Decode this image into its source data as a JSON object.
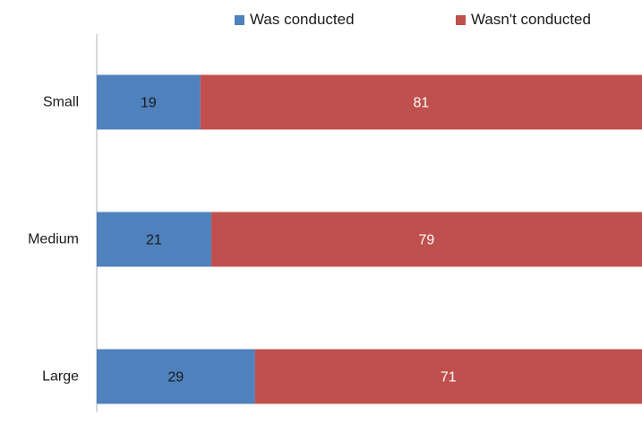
{
  "chart_data": {
    "type": "bar",
    "orientation": "horizontal",
    "stacked": true,
    "categories": [
      "Small",
      "Medium",
      "Large"
    ],
    "series": [
      {
        "name": "Was conducted",
        "values": [
          19,
          21,
          29
        ],
        "color": "#4f81bd",
        "label_color": "#1a1a1a"
      },
      {
        "name": "Wasn't conducted",
        "values": [
          81,
          79,
          71
        ],
        "color": "#c0504d",
        "label_color": "#ffffff"
      }
    ],
    "xlim": [
      0,
      100
    ],
    "grid": false,
    "legend": "top"
  }
}
